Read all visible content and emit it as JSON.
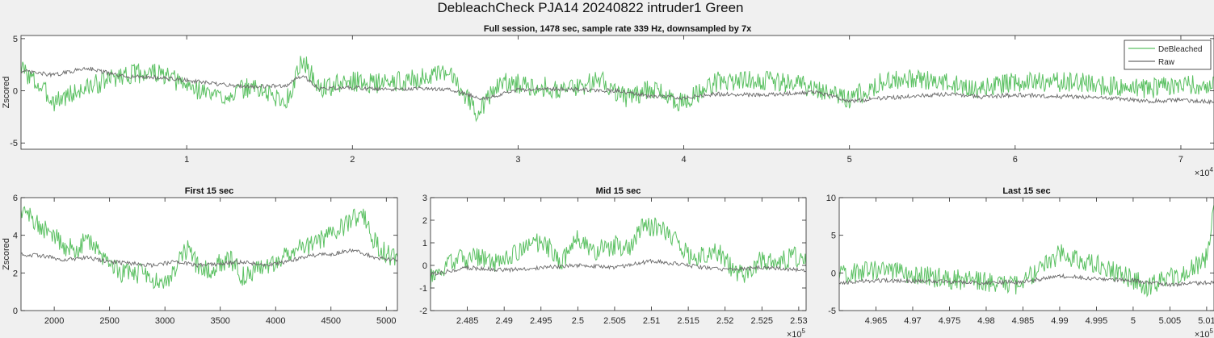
{
  "figure": {
    "suptitle": "DebleachCheck PJA14 20240822  intruder1 Green"
  },
  "colors": {
    "debleached": "#5cc163",
    "raw": "#6a6a6a",
    "axes_bg": "#ffffff",
    "figure_bg": "#f0f0f0",
    "axis": "#262626"
  },
  "chart_data": [
    {
      "type": "line",
      "title": "Full session, 1478 sec, sample rate 339 Hz, downsampled by 7x",
      "ylabel": "Zscored",
      "xlabel": "",
      "xlim": [
        0,
        72000
      ],
      "ylim": [
        -5.6,
        5.3
      ],
      "xticks": [
        10000,
        20000,
        30000,
        40000,
        50000,
        60000,
        70000
      ],
      "xtick_labels": [
        "1",
        "2",
        "3",
        "4",
        "5",
        "6",
        "7"
      ],
      "yticks": [
        -5,
        0,
        5
      ],
      "ytick_labels": [
        "-5",
        "0",
        "5"
      ],
      "exponent_label": "×10",
      "exponent_power": "4",
      "legend": {
        "position": "top-right",
        "entries": [
          "DeBleached",
          "Raw"
        ]
      },
      "series": [
        {
          "name": "DeBleached",
          "x": [
            0,
            2000,
            4000,
            6000,
            8000,
            10000,
            12000,
            14000,
            16000,
            17000,
            18000,
            20000,
            22000,
            24000,
            26000,
            27500,
            29000,
            31000,
            33000,
            35000,
            36500,
            38000,
            40000,
            42000,
            44000,
            46000,
            48000,
            50000,
            52000,
            54000,
            56000,
            58000,
            60000,
            62000,
            64000,
            66000,
            68000,
            70000,
            72000
          ],
          "y": [
            2.2,
            -1.0,
            0.3,
            1.5,
            1.8,
            0.5,
            -0.6,
            0.4,
            -1.1,
            3.0,
            0.2,
            0.9,
            0.7,
            1.2,
            1.6,
            -2.0,
            0.8,
            0.5,
            0.1,
            1.1,
            -0.7,
            0.2,
            -1.2,
            0.9,
            1.1,
            0.8,
            0.3,
            -0.8,
            0.9,
            1.1,
            0.7,
            0.2,
            0.8,
            0.9,
            0.8,
            0.4,
            0.2,
            0.7,
            0.4
          ]
        },
        {
          "name": "Raw",
          "x": [
            0,
            2000,
            4000,
            6000,
            8000,
            10000,
            12000,
            14000,
            16000,
            17000,
            18000,
            20000,
            22000,
            24000,
            26000,
            28000,
            30000,
            32000,
            34000,
            36000,
            38000,
            40000,
            42000,
            44000,
            46000,
            48000,
            50000,
            52000,
            54000,
            56000,
            58000,
            60000,
            62000,
            64000,
            66000,
            68000,
            70000,
            72000
          ],
          "y": [
            1.9,
            1.5,
            2.2,
            1.4,
            1.3,
            1.0,
            0.6,
            0.4,
            0.5,
            1.5,
            0.2,
            0.3,
            0.1,
            0.2,
            0.1,
            -0.8,
            0.1,
            0.2,
            0.1,
            0.0,
            -0.5,
            -0.7,
            -0.3,
            -0.4,
            -0.3,
            -0.1,
            -1.0,
            -0.7,
            -0.5,
            -0.3,
            -0.6,
            -0.4,
            -0.5,
            -0.6,
            -0.7,
            -1.0,
            -0.9,
            -1.1
          ]
        }
      ]
    },
    {
      "type": "line",
      "title": "First 15 sec",
      "ylabel": "Zscored",
      "xlabel": "",
      "xlim": [
        1700,
        5100
      ],
      "ylim": [
        0,
        6
      ],
      "xticks": [
        2000,
        2500,
        3000,
        3500,
        4000,
        4500,
        5000
      ],
      "xtick_labels": [
        "2000",
        "2500",
        "3000",
        "3500",
        "4000",
        "4500",
        "5000"
      ],
      "yticks": [
        0,
        2,
        4,
        6
      ],
      "ytick_labels": [
        "0",
        "2",
        "4",
        "6"
      ],
      "series": [
        {
          "name": "DeBleached",
          "x": [
            1700,
            1800,
            1900,
            2000,
            2100,
            2200,
            2300,
            2400,
            2500,
            2600,
            2700,
            2800,
            2900,
            3000,
            3100,
            3200,
            3300,
            3400,
            3500,
            3600,
            3700,
            3800,
            3900,
            4000,
            4100,
            4200,
            4300,
            4400,
            4500,
            4600,
            4700,
            4800,
            4900,
            5000,
            5100
          ],
          "y": [
            5.2,
            5.0,
            4.3,
            4.0,
            3.4,
            3.2,
            3.9,
            3.0,
            2.7,
            2.0,
            1.9,
            2.0,
            1.6,
            1.5,
            2.3,
            3.3,
            2.3,
            2.1,
            2.6,
            2.7,
            1.8,
            2.0,
            2.4,
            2.6,
            3.0,
            3.5,
            3.4,
            3.7,
            4.1,
            4.4,
            4.9,
            5.0,
            3.6,
            3.0,
            2.8
          ]
        },
        {
          "name": "Raw",
          "x": [
            1700,
            1900,
            2100,
            2300,
            2500,
            2700,
            2900,
            3100,
            3300,
            3500,
            3700,
            3900,
            4100,
            4300,
            4500,
            4700,
            4900,
            5100
          ],
          "y": [
            3.0,
            2.9,
            2.7,
            2.8,
            2.6,
            2.5,
            2.4,
            2.6,
            2.4,
            2.5,
            2.6,
            2.4,
            2.6,
            2.9,
            3.0,
            3.2,
            2.8,
            2.7
          ]
        }
      ]
    },
    {
      "type": "line",
      "title": "Mid 15 sec",
      "ylabel": "",
      "xlabel": "",
      "xlim": [
        248000,
        253100
      ],
      "ylim": [
        -2,
        3
      ],
      "xticks": [
        248500,
        249000,
        249500,
        250000,
        250500,
        251000,
        251500,
        252000,
        252500,
        253000
      ],
      "xtick_labels": [
        "2.485",
        "2.49",
        "2.495",
        "2.5",
        "2.505",
        "2.51",
        "2.515",
        "2.52",
        "2.525",
        "2.53"
      ],
      "yticks": [
        -2,
        -1,
        0,
        1,
        2,
        3
      ],
      "ytick_labels": [
        "-2",
        "-1",
        "0",
        "1",
        "2",
        "3"
      ],
      "exponent_label": "×10",
      "exponent_power": "5",
      "series": [
        {
          "name": "DeBleached",
          "x": [
            248000,
            248300,
            248600,
            248900,
            249200,
            249500,
            249800,
            250000,
            250200,
            250500,
            250700,
            250900,
            251100,
            251300,
            251500,
            251700,
            251900,
            252100,
            252300,
            252500,
            252700,
            252900,
            253100
          ],
          "y": [
            -0.6,
            0.2,
            0.4,
            0.1,
            0.6,
            1.1,
            0.2,
            1.3,
            0.6,
            0.9,
            0.8,
            1.9,
            1.6,
            1.3,
            0.5,
            0.4,
            0.6,
            -0.2,
            -0.4,
            0.3,
            0.1,
            0.4,
            0.3
          ]
        },
        {
          "name": "Raw",
          "x": [
            248000,
            248500,
            249000,
            249500,
            250000,
            250500,
            251000,
            251500,
            252000,
            252500,
            253100
          ],
          "y": [
            -0.4,
            -0.1,
            -0.2,
            -0.1,
            0.0,
            -0.1,
            0.2,
            0.0,
            -0.2,
            -0.1,
            -0.2
          ]
        }
      ]
    },
    {
      "type": "line",
      "title": "Last 15 sec",
      "ylabel": "",
      "xlabel": "",
      "xlim": [
        496000,
        501100
      ],
      "ylim": [
        -5,
        10
      ],
      "xticks": [
        496500,
        497000,
        497500,
        498000,
        498500,
        499000,
        499500,
        500000,
        500500,
        501000
      ],
      "xtick_labels": [
        "4.965",
        "4.97",
        "4.975",
        "4.98",
        "4.985",
        "4.99",
        "4.995",
        "5",
        "5.005",
        "5.01"
      ],
      "yticks": [
        -5,
        0,
        5,
        10
      ],
      "ytick_labels": [
        "-5",
        "0",
        "5",
        "10"
      ],
      "exponent_label": "×10",
      "exponent_power": "5",
      "series": [
        {
          "name": "DeBleached",
          "x": [
            496000,
            496300,
            496600,
            496900,
            497200,
            497500,
            497800,
            498100,
            498400,
            498700,
            499000,
            499300,
            499600,
            499900,
            500200,
            500500,
            500800,
            501000,
            501100
          ],
          "y": [
            -0.5,
            0.3,
            0.5,
            -0.2,
            -0.5,
            -0.8,
            -1.0,
            -1.2,
            -1.6,
            0.2,
            2.6,
            1.6,
            0.9,
            -0.5,
            -1.8,
            -0.6,
            0.6,
            2.0,
            8.5
          ]
        },
        {
          "name": "Raw",
          "x": [
            496000,
            496500,
            497000,
            497500,
            498000,
            498500,
            499000,
            499500,
            500000,
            500500,
            501100
          ],
          "y": [
            -1.3,
            -1.0,
            -1.1,
            -1.2,
            -1.3,
            -1.2,
            -0.4,
            -0.8,
            -1.0,
            -1.6,
            -1.2
          ]
        }
      ]
    }
  ]
}
